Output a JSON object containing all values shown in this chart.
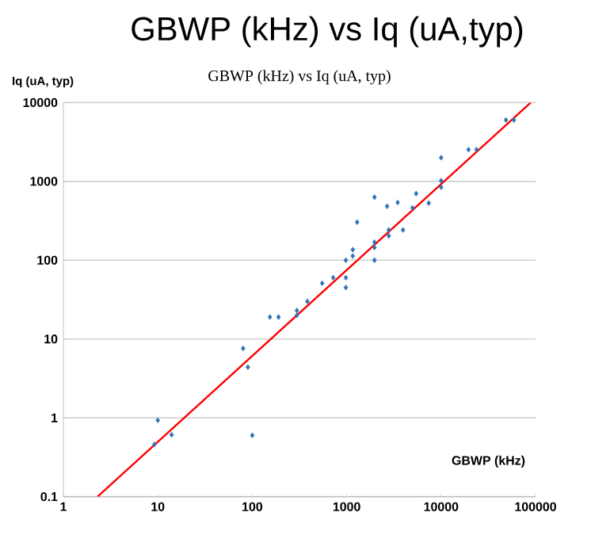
{
  "chart_data": {
    "type": "scatter",
    "title": "GBWP (kHz) vs Iq (uA,typ)",
    "subtitle": "GBWP (kHz) vs Iq (uA, typ)",
    "xlabel": "GBWP (kHz)",
    "ylabel": "Iq (uA, typ)",
    "log": "xy",
    "grid": "y",
    "xlim": [
      1,
      100000
    ],
    "ylim": [
      0.1,
      10000
    ],
    "xticks": [
      1,
      10,
      100,
      1000,
      10000,
      100000
    ],
    "yticks": [
      0.1,
      1,
      10,
      100,
      1000,
      10000
    ],
    "series": [
      {
        "marker": "diamond",
        "color": "#2e75b6",
        "x": [
          9.2,
          10,
          14,
          100,
          80,
          90,
          154,
          190,
          297,
          297,
          384,
          550,
          720,
          980,
          980,
          980,
          1160,
          1160,
          1290,
          1970,
          1970,
          1970,
          1970,
          2680,
          2790,
          2790,
          3470,
          3950,
          4980,
          5440,
          7400,
          10000,
          10000,
          10000,
          19500,
          23700,
          48600,
          59000
        ],
        "values": [
          0.46,
          0.93,
          0.61,
          0.6,
          7.6,
          4.4,
          19,
          19,
          23,
          20,
          30,
          51,
          60,
          100,
          60,
          45,
          136,
          113,
          304,
          630,
          169,
          145,
          100,
          484,
          242,
          204,
          540,
          242,
          461,
          700,
          531,
          2000,
          1020,
          845,
          2530,
          2530,
          6010,
          6010
        ]
      },
      {
        "type": "line",
        "color": "#ff0000",
        "x": [
          2.3,
          89000
        ],
        "values": [
          0.1,
          10000
        ]
      }
    ]
  }
}
